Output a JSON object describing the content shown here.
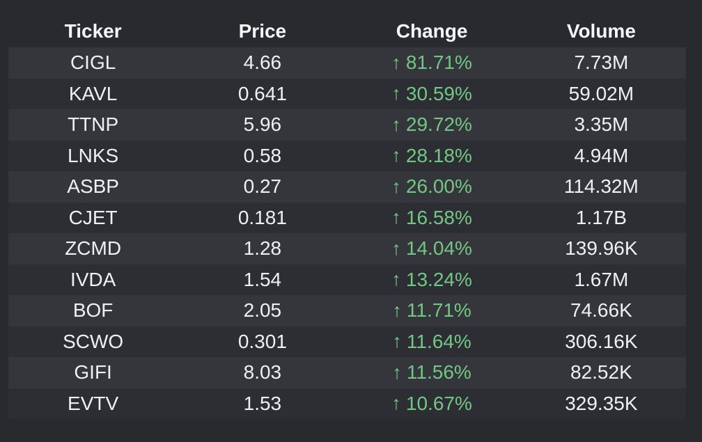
{
  "table": {
    "headers": [
      {
        "label": "Ticker"
      },
      {
        "label": "Price"
      },
      {
        "label": "Change"
      },
      {
        "label": "Volume"
      }
    ],
    "up_arrow_glyph": "↑",
    "rows": [
      {
        "ticker": "CIGL",
        "price": "4.66",
        "change": "81.71%",
        "direction": "up",
        "volume": "7.73M"
      },
      {
        "ticker": "KAVL",
        "price": "0.641",
        "change": "30.59%",
        "direction": "up",
        "volume": "59.02M"
      },
      {
        "ticker": "TTNP",
        "price": "5.96",
        "change": "29.72%",
        "direction": "up",
        "volume": "3.35M"
      },
      {
        "ticker": "LNKS",
        "price": "0.58",
        "change": "28.18%",
        "direction": "up",
        "volume": "4.94M"
      },
      {
        "ticker": "ASBP",
        "price": "0.27",
        "change": "26.00%",
        "direction": "up",
        "volume": "114.32M"
      },
      {
        "ticker": "CJET",
        "price": "0.181",
        "change": "16.58%",
        "direction": "up",
        "volume": "1.17B"
      },
      {
        "ticker": "ZCMD",
        "price": "1.28",
        "change": "14.04%",
        "direction": "up",
        "volume": "139.96K"
      },
      {
        "ticker": "IVDA",
        "price": "1.54",
        "change": "13.24%",
        "direction": "up",
        "volume": "1.67M"
      },
      {
        "ticker": "BOF",
        "price": "2.05",
        "change": "11.71%",
        "direction": "up",
        "volume": "74.66K"
      },
      {
        "ticker": "SCWO",
        "price": "0.301",
        "change": "11.64%",
        "direction": "up",
        "volume": "306.16K"
      },
      {
        "ticker": "GIFI",
        "price": "8.03",
        "change": "11.56%",
        "direction": "up",
        "volume": "82.52K"
      },
      {
        "ticker": "EVTV",
        "price": "1.53",
        "change": "10.67%",
        "direction": "up",
        "volume": "329.35K"
      }
    ]
  },
  "colors": {
    "background": "#292a2e",
    "row_stripe_light": "#34363b",
    "row_stripe_dark": "#2d2e33",
    "header_text": "#f5f6f7",
    "cell_text": "#eef0f2",
    "positive_green": "#73c784"
  },
  "chart_data": {
    "type": "table",
    "title": "",
    "columns": [
      "Ticker",
      "Price",
      "Change",
      "Volume"
    ],
    "rows": [
      [
        "CIGL",
        4.66,
        81.71,
        "7.73M"
      ],
      [
        "KAVL",
        0.641,
        30.59,
        "59.02M"
      ],
      [
        "TTNP",
        5.96,
        29.72,
        "3.35M"
      ],
      [
        "LNKS",
        0.58,
        28.18,
        "4.94M"
      ],
      [
        "ASBP",
        0.27,
        26.0,
        "114.32M"
      ],
      [
        "CJET",
        0.181,
        16.58,
        "1.17B"
      ],
      [
        "ZCMD",
        1.28,
        14.04,
        "139.96K"
      ],
      [
        "IVDA",
        1.54,
        13.24,
        "1.67M"
      ],
      [
        "BOF",
        2.05,
        11.71,
        "74.66K"
      ],
      [
        "SCWO",
        0.301,
        11.64,
        "306.16K"
      ],
      [
        "GIFI",
        8.03,
        11.56,
        "82.52K"
      ],
      [
        "EVTV",
        1.53,
        10.67,
        "329.35K"
      ]
    ],
    "notes": "Change values are percentages, all positive (green up arrows). Zebra-striped dark-theme table, all cells center-aligned."
  }
}
